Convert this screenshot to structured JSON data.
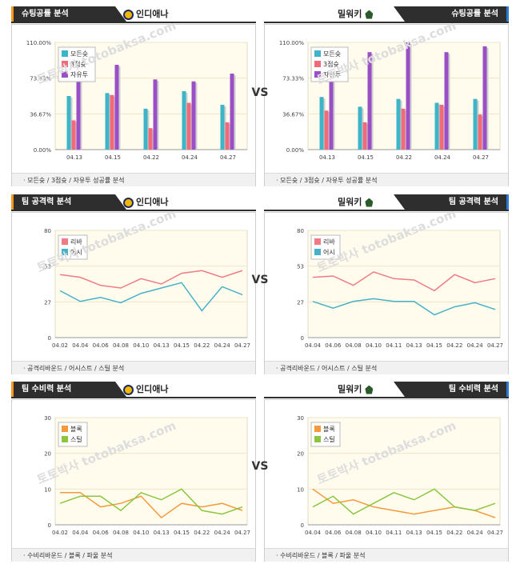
{
  "vs_label": "VS",
  "watermark": "토토박사 totobaksa.com",
  "sections": [
    {
      "id": "shoot",
      "title": "슈팅공률 분석",
      "footer": "모든슛 / 3점슛 / 자유투 성공률 분석",
      "left": {
        "team": "인디애나",
        "chart_data": {
          "type": "bar",
          "categories": [
            "04.13",
            "04.15",
            "04.22",
            "04.24",
            "04.27"
          ],
          "y_ticks": [
            "0.00%",
            "36.67%",
            "73.33%",
            "110.00%"
          ],
          "ylim": [
            0,
            110
          ],
          "legend_position": "top-left",
          "series": [
            {
              "name": "모든슛",
              "color": "#3db4c8",
              "values": [
                55,
                58,
                42,
                60,
                46
              ]
            },
            {
              "name": "3점슛",
              "color": "#f06a7a",
              "values": [
                30,
                56,
                22,
                48,
                28
              ]
            },
            {
              "name": "자유투",
              "color": "#9b4fc7",
              "values": [
                77,
                87,
                72,
                70,
                78
              ]
            }
          ]
        }
      },
      "right": {
        "team": "밀워키",
        "chart_data": {
          "type": "bar",
          "categories": [
            "04.13",
            "04.15",
            "04.22",
            "04.24",
            "04.27"
          ],
          "y_ticks": [
            "0.00%",
            "36.67%",
            "73.33%",
            "110.00%"
          ],
          "ylim": [
            0,
            110
          ],
          "legend_position": "top-left",
          "series": [
            {
              "name": "모든슛",
              "color": "#3db4c8",
              "values": [
                54,
                44,
                52,
                48,
                52
              ]
            },
            {
              "name": "3점슛",
              "color": "#f06a7a",
              "values": [
                40,
                28,
                42,
                46,
                36
              ]
            },
            {
              "name": "자유투",
              "color": "#9b4fc7",
              "values": [
                80,
                100,
                110,
                100,
                106
              ]
            }
          ]
        }
      }
    },
    {
      "id": "attack",
      "title": "팀 공격력 분석",
      "footer": "공격리바운드 / 어시스트 / 스틸 분석",
      "left": {
        "team": "인디애나",
        "chart_data": {
          "type": "line",
          "categories": [
            "04.02",
            "04.04",
            "04.06",
            "04.08",
            "04.10",
            "04.13",
            "04.15",
            "04.22",
            "04.24",
            "04.27"
          ],
          "y_ticks": [
            "0",
            "27",
            "53",
            "80"
          ],
          "ylim": [
            0,
            80
          ],
          "legend_position": "top-left",
          "series": [
            {
              "name": "리바",
              "color": "#f07a85",
              "values": [
                47,
                45,
                39,
                37,
                44,
                40,
                48,
                50,
                45,
                50
              ]
            },
            {
              "name": "어시",
              "color": "#46b1c9",
              "values": [
                35,
                27,
                30,
                26,
                33,
                37,
                41,
                20,
                38,
                32
              ]
            }
          ]
        }
      },
      "right": {
        "team": "밀워키",
        "chart_data": {
          "type": "line",
          "categories": [
            "04.04",
            "04.06",
            "04.08",
            "04.10",
            "04.11",
            "04.13",
            "04.15",
            "04.22",
            "04.24",
            "04.27"
          ],
          "y_ticks": [
            "0",
            "27",
            "53",
            "80"
          ],
          "ylim": [
            0,
            80
          ],
          "legend_position": "top-left",
          "series": [
            {
              "name": "리바",
              "color": "#f07a85",
              "values": [
                45,
                46,
                39,
                49,
                44,
                43,
                35,
                47,
                41,
                44
              ]
            },
            {
              "name": "어시",
              "color": "#46b1c9",
              "values": [
                27,
                22,
                27,
                29,
                27,
                27,
                17,
                23,
                26,
                21
              ]
            }
          ]
        }
      }
    },
    {
      "id": "defense",
      "title": "팀 수비력 분석",
      "footer": "수비리바운드 / 블록 / 파울 분석",
      "left": {
        "team": "인디애나",
        "chart_data": {
          "type": "line",
          "categories": [
            "04.02",
            "04.04",
            "04.06",
            "04.08",
            "04.10",
            "04.13",
            "04.15",
            "04.22",
            "04.24",
            "04.27"
          ],
          "y_ticks": [
            "0",
            "10",
            "20",
            "30"
          ],
          "ylim": [
            0,
            30
          ],
          "legend_position": "top-left",
          "series": [
            {
              "name": "블록",
              "color": "#f59a3c",
              "values": [
                9,
                9,
                5,
                6,
                8,
                2,
                6,
                5,
                6,
                4
              ]
            },
            {
              "name": "스틸",
              "color": "#8cc63f",
              "values": [
                6,
                8,
                8,
                4,
                9,
                7,
                10,
                4,
                3,
                5
              ]
            }
          ]
        }
      },
      "right": {
        "team": "밀워키",
        "chart_data": {
          "type": "line",
          "categories": [
            "04.04",
            "04.06",
            "04.08",
            "04.10",
            "04.11",
            "04.13",
            "04.15",
            "04.22",
            "04.24",
            "04.27"
          ],
          "y_ticks": [
            "0",
            "10",
            "20",
            "30"
          ],
          "ylim": [
            0,
            30
          ],
          "legend_position": "top-left",
          "series": [
            {
              "name": "블록",
              "color": "#f59a3c",
              "values": [
                10,
                6,
                7,
                5,
                4,
                3,
                4,
                5,
                4,
                2
              ]
            },
            {
              "name": "스틸",
              "color": "#8cc63f",
              "values": [
                5,
                8,
                3,
                6,
                9,
                7,
                10,
                5,
                4,
                6
              ]
            }
          ]
        }
      }
    }
  ]
}
